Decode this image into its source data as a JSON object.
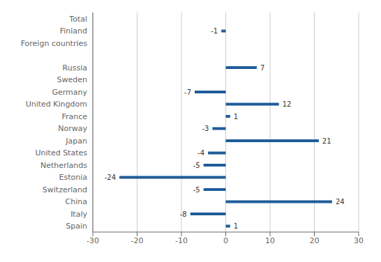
{
  "chart_data": {
    "type": "bar",
    "orientation": "horizontal",
    "categories": [
      "Total",
      "Finland",
      "Foreign countries",
      null,
      "Russia",
      "Sweden",
      "Germany",
      "United Kingdom",
      "France",
      "Norway",
      "Japan",
      "United States",
      "Netherlands",
      "Estonia",
      "Switzerland",
      "China",
      "Italy",
      "Spain"
    ],
    "values": [
      0,
      -1,
      0,
      null,
      7,
      0,
      -7,
      12,
      1,
      -3,
      21,
      -4,
      -5,
      -24,
      -5,
      24,
      -8,
      1
    ],
    "color": "#1F5C99",
    "xlim": [
      -30,
      30
    ],
    "xticks": [
      -30,
      -20,
      -10,
      0,
      10,
      20,
      30
    ],
    "grid": true,
    "data_labels": true
  }
}
